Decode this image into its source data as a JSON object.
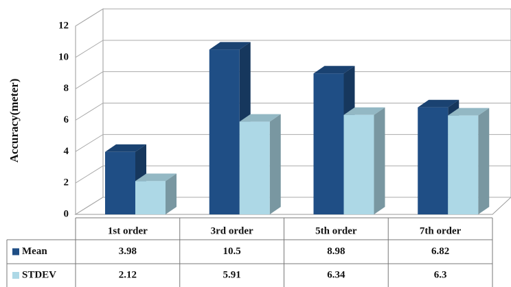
{
  "chart_data": {
    "type": "bar3d",
    "y_label": "Accuracy(meter)",
    "categories": [
      "1st order",
      "3rd order",
      "5th order",
      "7th order"
    ],
    "series": [
      {
        "name": "Mean",
        "color": "#1f4e85",
        "values": [
          3.98,
          10.5,
          8.98,
          6.82
        ]
      },
      {
        "name": "STDEV",
        "color": "#add8e6",
        "values": [
          2.12,
          5.91,
          6.34,
          6.3
        ]
      }
    ],
    "ylim": [
      0,
      12
    ],
    "yticks": [
      0,
      2,
      4,
      6,
      8,
      10,
      12
    ],
    "grid": true
  }
}
